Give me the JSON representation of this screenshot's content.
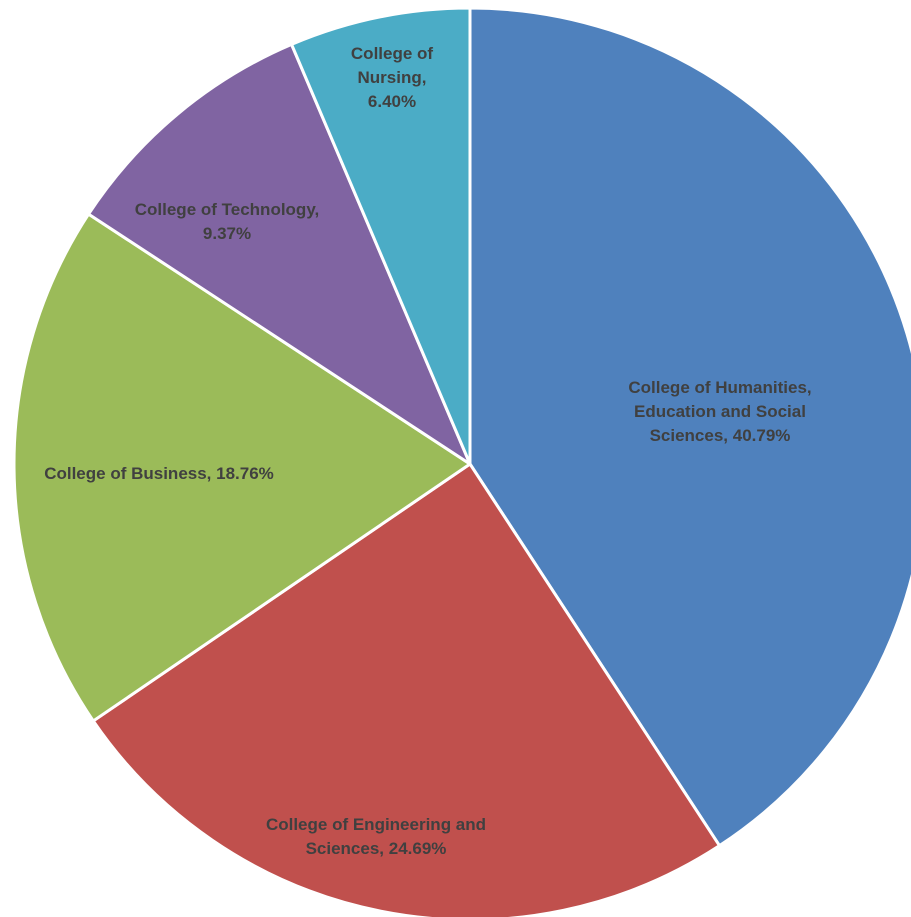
{
  "chart_data": {
    "type": "pie",
    "title": "",
    "slices": [
      {
        "label": "College of Humanities, Education and Social Sciences",
        "value": 40.79,
        "display": "40.79%",
        "label_lines": [
          "College of Humanities,",
          "Education and Social",
          "Sciences, 40.79%"
        ],
        "color": "#4F81BD"
      },
      {
        "label": "College of Engineering and Sciences",
        "value": 24.69,
        "display": "24.69%",
        "label_lines": [
          "College of Engineering and",
          "Sciences, 24.69%"
        ],
        "color": "#C0504D"
      },
      {
        "label": "College of Business",
        "value": 18.76,
        "display": "18.76%",
        "label_lines": [
          "College of Business, 18.76%"
        ],
        "color": "#9BBB59"
      },
      {
        "label": "College of Technology",
        "value": 9.37,
        "display": "9.37%",
        "label_lines": [
          "College of Technology,",
          "9.37%"
        ],
        "color": "#8064A2"
      },
      {
        "label": "College of Nursing",
        "value": 6.4,
        "display": "6.40%",
        "label_lines": [
          "College of",
          "Nursing,",
          "6.40%"
        ],
        "color": "#4BACC6"
      }
    ],
    "start_angle_deg": 0,
    "direction": "clockwise",
    "legend": "none"
  }
}
